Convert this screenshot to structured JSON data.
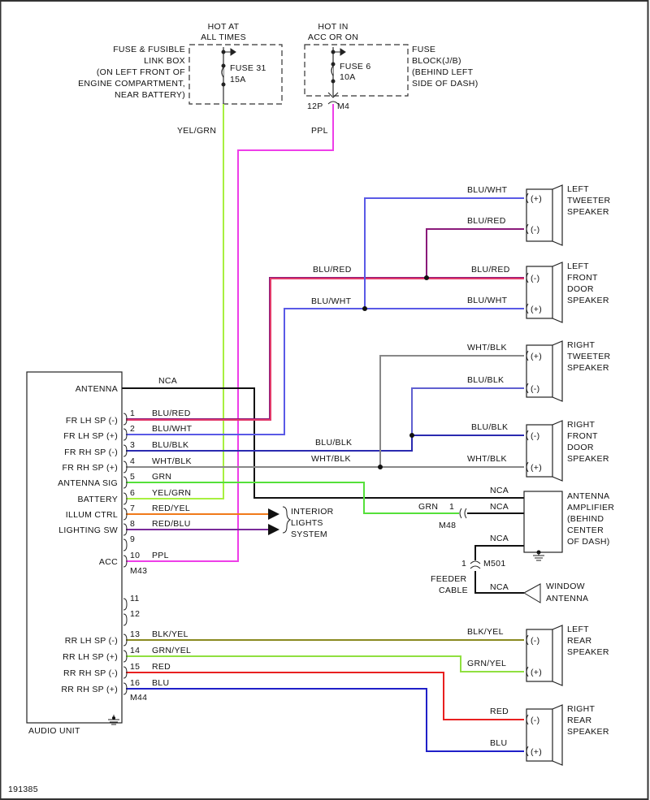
{
  "figure_id": "191385",
  "fuse_box_left": {
    "hot_label": [
      "HOT AT",
      "ALL TIMES"
    ],
    "location": [
      "FUSE & FUSIBLE",
      "LINK BOX",
      "(ON LEFT FRONT OF",
      "ENGINE COMPARTMENT,",
      "NEAR BATTERY)"
    ],
    "fuse": [
      "FUSE 31",
      "15A"
    ],
    "wire_label": "YEL/GRN"
  },
  "fuse_box_right": {
    "hot_label": [
      "HOT IN",
      "ACC OR ON"
    ],
    "location": [
      "FUSE",
      "BLOCK(J/B)",
      "(BEHIND LEFT",
      "SIDE OF DASH)"
    ],
    "fuse": [
      "FUSE 6",
      "10A"
    ],
    "connector": [
      "12P",
      "M4"
    ],
    "wire_label": "PPL"
  },
  "audio_unit": {
    "title": "AUDIO UNIT",
    "terminals": [
      "ANTENNA",
      "FR LH SP (-)",
      "FR LH SP (+)",
      "FR RH SP (-)",
      "FR RH SP (+)",
      "ANTENNA SIG",
      "BATTERY",
      "ILLUM CTRL",
      "LIGHTING SW",
      "ACC",
      "RR LH SP (-)",
      "RR LH SP (+)",
      "RR RH SP (-)",
      "RR RH SP (+)"
    ],
    "antenna_wire": "NCA",
    "pins": [
      {
        "num": "1",
        "wire": "BLU/RED"
      },
      {
        "num": "2",
        "wire": "BLU/WHT"
      },
      {
        "num": "3",
        "wire": "BLU/BLK"
      },
      {
        "num": "4",
        "wire": "WHT/BLK"
      },
      {
        "num": "5",
        "wire": "GRN"
      },
      {
        "num": "6",
        "wire": "YEL/GRN"
      },
      {
        "num": "7",
        "wire": "RED/YEL"
      },
      {
        "num": "8",
        "wire": "RED/BLU"
      },
      {
        "num": "9",
        "wire": ""
      },
      {
        "num": "10",
        "wire": "PPL"
      },
      {
        "num": "11",
        "wire": ""
      },
      {
        "num": "12",
        "wire": ""
      },
      {
        "num": "13",
        "wire": "BLK/YEL"
      },
      {
        "num": "14",
        "wire": "GRN/YEL"
      },
      {
        "num": "15",
        "wire": "RED"
      },
      {
        "num": "16",
        "wire": "BLU"
      }
    ],
    "connectors": [
      "M43",
      "M44"
    ]
  },
  "interior_lights": [
    "INTERIOR",
    "LIGHTS",
    "SYSTEM"
  ],
  "speakers": [
    {
      "name": [
        "LEFT",
        "TWEETER",
        "SPEAKER"
      ],
      "terminals": [
        "(+)",
        "(-)"
      ],
      "wires": [
        "BLU/WHT",
        "BLU/RED"
      ]
    },
    {
      "name": [
        "LEFT",
        "FRONT",
        "DOOR",
        "SPEAKER"
      ],
      "terminals": [
        "(-)",
        "(+)"
      ],
      "wires": [
        "BLU/RED",
        "BLU/WHT"
      ]
    },
    {
      "name": [
        "RIGHT",
        "TWEETER",
        "SPEAKER"
      ],
      "terminals": [
        "(+)",
        "(-)"
      ],
      "wires": [
        "WHT/BLK",
        "BLU/BLK"
      ]
    },
    {
      "name": [
        "RIGHT",
        "FRONT",
        "DOOR",
        "SPEAKER"
      ],
      "terminals": [
        "(-)",
        "(+)"
      ],
      "wires": [
        "BLU/BLK",
        "WHT/BLK"
      ]
    },
    {
      "name": [
        "LEFT",
        "REAR",
        "SPEAKER"
      ],
      "terminals": [
        "(-)",
        "(+)"
      ],
      "wires": [
        "BLK/YEL",
        "GRN/YEL"
      ]
    },
    {
      "name": [
        "RIGHT",
        "REAR",
        "SPEAKER"
      ],
      "terminals": [
        "(-)",
        "(+)"
      ],
      "wires": [
        "RED",
        "BLU"
      ]
    }
  ],
  "midline_labels": {
    "blu_red": "BLU/RED",
    "blu_wht": "BLU/WHT",
    "blu_blk": "BLU/BLK",
    "wht_blk": "WHT/BLK"
  },
  "antenna_amp": {
    "name": [
      "ANTENNA",
      "AMPLIFIER",
      "(BEHIND",
      "CENTER",
      "OF DASH)"
    ],
    "wire_nca": "NCA",
    "grn_label": "GRN",
    "pin": "1",
    "connector_m48": "M48",
    "connector_m501": "M501",
    "feeder": [
      "FEEDER",
      "CABLE"
    ],
    "window_antenna": [
      "WINDOW",
      "ANTENNA"
    ]
  },
  "wire_colors": {
    "BLU/RED": "#8a1a7a",
    "BLU/WHT": "#5a5ae6",
    "BLU/BLK": "#2a2ab0",
    "WHT/BLK": "#888888",
    "GRN": "#55e03a",
    "YEL/GRN": "#a8f040",
    "RED/YEL": "#f07a1a",
    "RED/BLU": "#7a2a9a",
    "PPL": "#ee3ee8",
    "NCA": "#111111",
    "BLK/YEL": "#8a8a20",
    "GRN/YEL": "#90e040",
    "RED": "#e82020",
    "BLU": "#2020c8"
  }
}
